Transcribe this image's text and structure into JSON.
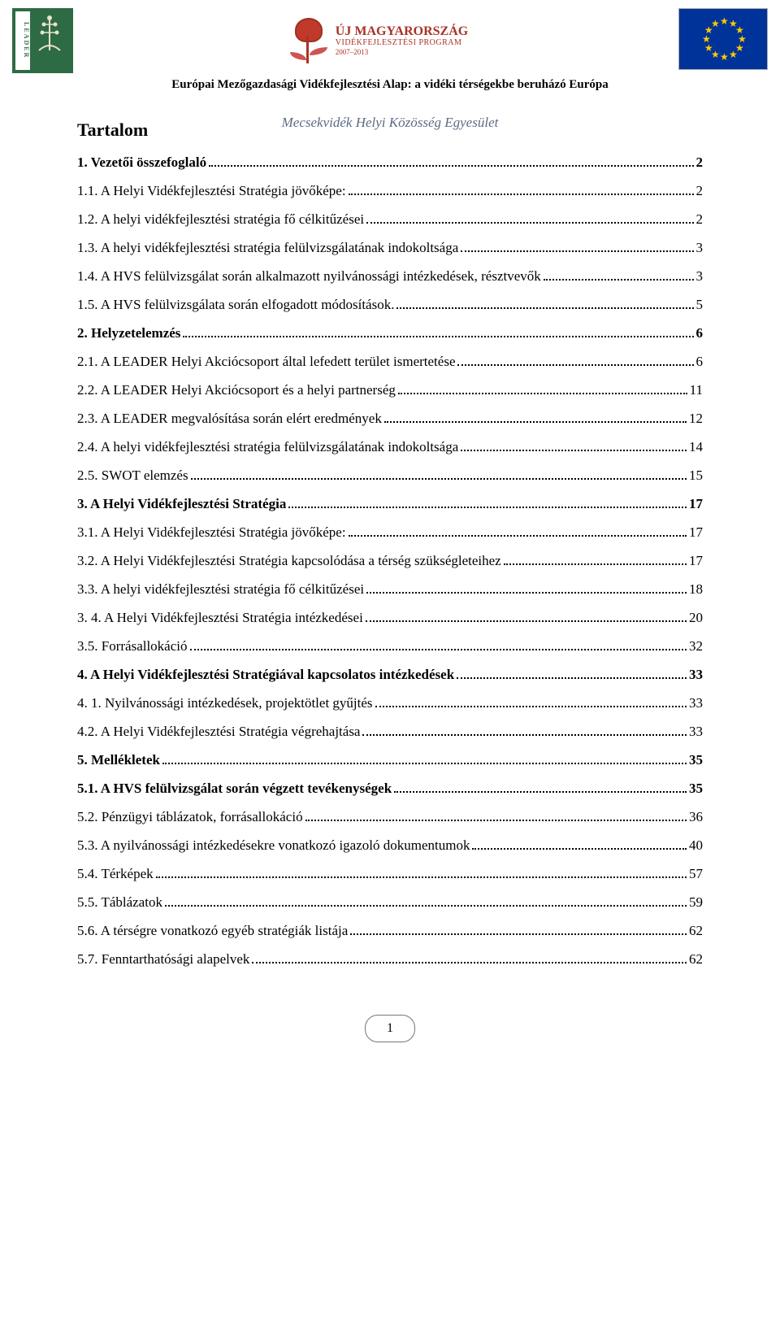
{
  "header": {
    "eafrd_line": "Európai Mezőgazdasági Vidékfejlesztési Alap: a vidéki térségekbe beruházó Európa",
    "association_line": "Mecsekvidék Helyi Közösség Egyesület",
    "toc_title": "Tartalom",
    "center_logo_title": "ÚJ MAGYARORSZÁG",
    "center_logo_sub": "VIDÉKFEJLESZTÉSI PROGRAM",
    "center_logo_years": "2007–2013",
    "leader_label": "LEADER"
  },
  "toc": [
    {
      "title": "1. Vezetői összefoglaló",
      "page": "2",
      "bold": true
    },
    {
      "title": "1.1. A Helyi Vidékfejlesztési Stratégia jövőképe:",
      "page": "2",
      "bold": false
    },
    {
      "title": "1.2. A helyi vidékfejlesztési stratégia fő célkitűzései",
      "page": "2",
      "bold": false
    },
    {
      "title": "1.3. A helyi vidékfejlesztési stratégia felülvizsgálatának indokoltsága",
      "page": "3",
      "bold": false
    },
    {
      "title": "1.4. A HVS felülvizsgálat során alkalmazott nyilvánossági intézkedések, résztvevők",
      "page": "3",
      "bold": false
    },
    {
      "title": "1.5. A HVS felülvizsgálata során elfogadott módosítások.",
      "page": "5",
      "bold": false
    },
    {
      "title": "2. Helyzetelemzés",
      "page": "6",
      "bold": true
    },
    {
      "title": "2.1. A LEADER Helyi Akciócsoport által lefedett terület ismertetése",
      "page": "6",
      "bold": false
    },
    {
      "title": "2.2. A LEADER Helyi Akciócsoport és a helyi partnerség",
      "page": "11",
      "bold": false
    },
    {
      "title": "2.3. A LEADER megvalósítása során elért eredmények",
      "page": "12",
      "bold": false
    },
    {
      "title": "2.4. A helyi vidékfejlesztési stratégia felülvizsgálatának indokoltsága",
      "page": "14",
      "bold": false
    },
    {
      "title": "2.5. SWOT elemzés",
      "page": "15",
      "bold": false
    },
    {
      "title": "3. A Helyi Vidékfejlesztési Stratégia",
      "page": "17",
      "bold": true
    },
    {
      "title": "3.1. A Helyi Vidékfejlesztési Stratégia jövőképe:",
      "page": "17",
      "bold": false
    },
    {
      "title": "3.2. A Helyi Vidékfejlesztési Stratégia kapcsolódása a térség szükségleteihez",
      "page": "17",
      "bold": false
    },
    {
      "title": "3.3. A helyi vidékfejlesztési stratégia fő célkitűzései",
      "page": "18",
      "bold": false
    },
    {
      "title": "3. 4. A Helyi Vidékfejlesztési Stratégia intézkedései",
      "page": "20",
      "bold": false
    },
    {
      "title": "3.5. Forrásallokáció",
      "page": "32",
      "bold": false
    },
    {
      "title": "4. A Helyi Vidékfejlesztési Stratégiával kapcsolatos intézkedések",
      "page": "33",
      "bold": true
    },
    {
      "title": "4. 1. Nyilvánossági intézkedések, projektötlet gyűjtés",
      "page": "33",
      "bold": false
    },
    {
      "title": "4.2. A Helyi Vidékfejlesztési Stratégia végrehajtása",
      "page": "33",
      "bold": false
    },
    {
      "title": "5. Mellékletek",
      "page": "35",
      "bold": true
    },
    {
      "title": "5.1. A HVS felülvizsgálat során végzett tevékenységek",
      "page": "35",
      "bold": true
    },
    {
      "title": "5.2. Pénzügyi táblázatok, forrásallokáció",
      "page": "36",
      "bold": false
    },
    {
      "title": "5.3. A nyilvánossági intézkedésekre vonatkozó igazoló dokumentumok",
      "page": "40",
      "bold": false
    },
    {
      "title": "5.4. Térképek",
      "page": "57",
      "bold": false
    },
    {
      "title": "5.5. Táblázatok",
      "page": "59",
      "bold": false
    },
    {
      "title": "5.6. A térségre vonatkozó egyéb stratégiák listája",
      "page": "62",
      "bold": false
    },
    {
      "title": "5.7. Fenntarthatósági alapelvek",
      "page": "62",
      "bold": false
    }
  ],
  "page_number": "1",
  "colors": {
    "leader_green": "#2d6b45",
    "eu_blue": "#003399",
    "eu_gold": "#ffcc00",
    "center_red": "#a93226",
    "subheader_blue": "#5b6b84"
  }
}
